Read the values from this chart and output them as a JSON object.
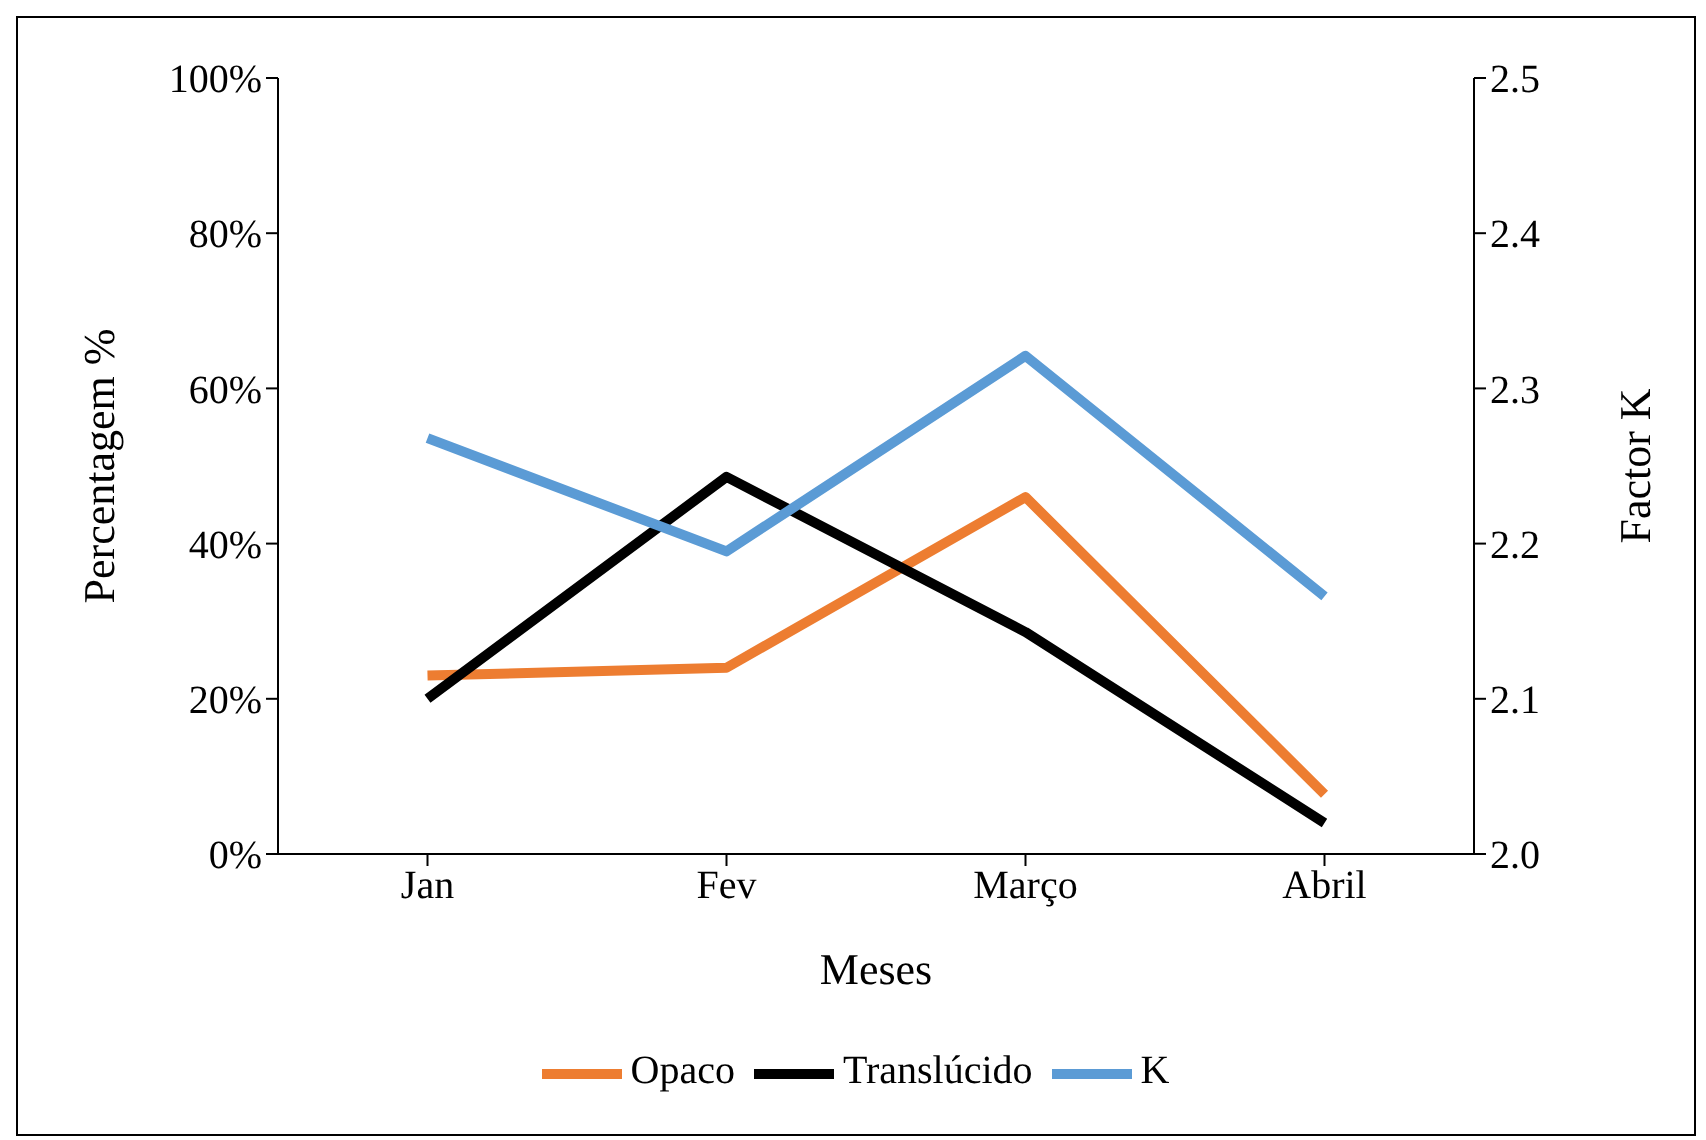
{
  "chart_data": {
    "type": "line",
    "xlabel": "Meses",
    "ylabel": "Percentagem %",
    "y2label": "Factor K",
    "categories": [
      "Jan",
      "Fev",
      "Março",
      "Abril"
    ],
    "series": [
      {
        "name": "Opaco",
        "color": "#ed7d31",
        "values": [
          23,
          24,
          46,
          7.7
        ]
      },
      {
        "name": "Translúcido",
        "color": "#000000",
        "values": [
          20,
          48.6,
          28.6,
          4
        ]
      },
      {
        "name": "K",
        "color": "#5b9bd5",
        "axis": "y2",
        "values": [
          2.268,
          2.195,
          2.321,
          2.166
        ]
      }
    ],
    "ylim": [
      0,
      100
    ],
    "yticks": [
      {
        "value": 0,
        "label": "0%"
      },
      {
        "value": 20,
        "label": "20%"
      },
      {
        "value": 40,
        "label": "40%"
      },
      {
        "value": 60,
        "label": "60%"
      },
      {
        "value": 80,
        "label": "80%"
      },
      {
        "value": 100,
        "label": "100%"
      }
    ],
    "y2lim": [
      2,
      2.5
    ],
    "y2ticks": [
      {
        "value": 2,
        "label": "2.0"
      },
      {
        "value": 2.1,
        "label": "2.1"
      },
      {
        "value": 2.2,
        "label": "2.2"
      },
      {
        "value": 2.3,
        "label": "2.3"
      },
      {
        "value": 2.4,
        "label": "2.4"
      },
      {
        "value": 2.5,
        "label": "2.5"
      }
    ],
    "grid": false,
    "legend": "bottom",
    "marker": "none",
    "line_style": "solid"
  }
}
